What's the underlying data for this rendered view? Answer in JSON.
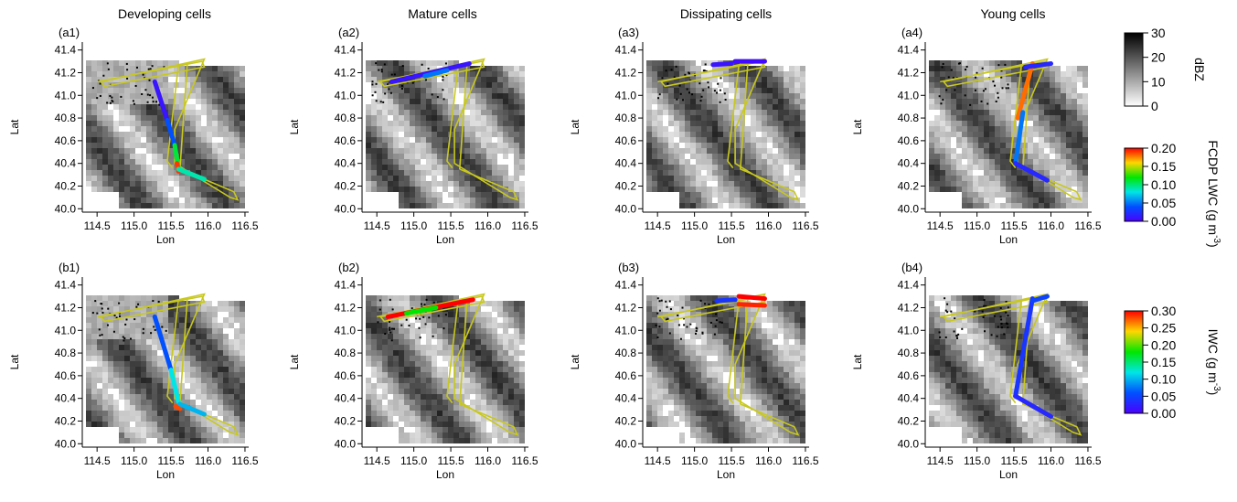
{
  "columns": [
    "Developing cells",
    "Mature cells",
    "Dissipating cells",
    "Young cells"
  ],
  "panel_labels": [
    "(a1)",
    "(a2)",
    "(a3)",
    "(a4)",
    "(b1)",
    "(b2)",
    "(b3)",
    "(b4)"
  ],
  "axis_labels": {
    "x": "Lon",
    "y": "Lat"
  },
  "colors": {
    "track": "#c8c81e",
    "radar_dark": "#141414",
    "radar_light": "#e6e6e6"
  },
  "colorbars": {
    "dbz": {
      "label": "dBZ",
      "ticks": [
        "30",
        "20",
        "10",
        "0"
      ],
      "range": [
        0,
        30
      ]
    },
    "lwc": {
      "label": "FCDP LWC (g m",
      "sup": "-3",
      "tail": ")",
      "ticks": [
        "0.20",
        "0.15",
        "0.10",
        "0.05",
        "0.00"
      ],
      "range": [
        0,
        0.2
      ]
    },
    "iwc": {
      "label": "IWC (g m",
      "sup": "-3",
      "tail": ")",
      "ticks": [
        "0.30",
        "0.25",
        "0.20",
        "0.15",
        "0.10",
        "0.05",
        "0.00"
      ],
      "range": [
        0,
        0.3
      ]
    }
  },
  "chart_data": {
    "type": "scatter",
    "description_axes": {
      "x_ticks": [
        "114.5",
        "115.0",
        "115.5",
        "116.0",
        "116.5"
      ],
      "y_ticks": [
        "40.0",
        "40.2",
        "40.4",
        "40.6",
        "40.8",
        "41.0",
        "41.2",
        "41.4"
      ],
      "xlim": [
        114.3,
        116.55
      ],
      "ylim": [
        39.97,
        41.47
      ]
    },
    "flight_track": [
      [
        114.5,
        41.12
      ],
      [
        115.92,
        41.3
      ],
      [
        115.95,
        41.25
      ],
      [
        114.6,
        41.08
      ],
      [
        114.55,
        41.12
      ],
      [
        115.95,
        41.32
      ],
      [
        115.55,
        40.7
      ],
      [
        115.55,
        40.4
      ],
      [
        116.3,
        40.1
      ],
      [
        116.4,
        40.08
      ],
      [
        116.35,
        40.15
      ],
      [
        115.62,
        40.35
      ],
      [
        115.72,
        41.28
      ],
      [
        115.6,
        41.27
      ],
      [
        115.45,
        40.42
      ],
      [
        115.52,
        40.36
      ]
    ],
    "panels": [
      {
        "id": "a1",
        "variable": "FCDP LWC",
        "segments": [
          {
            "from": [
              115.28,
              41.12
            ],
            "to": [
              115.45,
              40.78
            ],
            "value": 0.01
          },
          {
            "from": [
              115.45,
              40.78
            ],
            "to": [
              115.55,
              40.56
            ],
            "value": 0.04
          },
          {
            "from": [
              115.55,
              40.56
            ],
            "to": [
              115.6,
              40.36
            ],
            "value": 0.11
          },
          {
            "from": [
              115.58,
              40.4
            ],
            "to": [
              115.6,
              40.33
            ],
            "value": 0.19
          },
          {
            "from": [
              115.6,
              40.35
            ],
            "to": [
              115.95,
              40.26
            ],
            "value": 0.09
          }
        ]
      },
      {
        "id": "a2",
        "variable": "FCDP LWC",
        "segments": [
          {
            "from": [
              114.7,
              41.12
            ],
            "to": [
              115.75,
              41.28
            ],
            "value": 0.01
          },
          {
            "from": [
              115.15,
              41.17
            ],
            "to": [
              115.45,
              41.22
            ],
            "value": 0.05
          }
        ]
      },
      {
        "id": "a3",
        "variable": "FCDP LWC",
        "segments": [
          {
            "from": [
              115.55,
              41.3
            ],
            "to": [
              115.95,
              41.3
            ],
            "value": 0.005
          },
          {
            "from": [
              115.25,
              41.27
            ],
            "to": [
              115.5,
              41.28
            ],
            "value": 0.01
          }
        ]
      },
      {
        "id": "a4",
        "variable": "FCDP LWC",
        "segments": [
          {
            "from": [
              115.75,
              41.28
            ],
            "to": [
              115.55,
              40.8
            ],
            "value": 0.18
          },
          {
            "from": [
              115.62,
              40.85
            ],
            "to": [
              115.52,
              40.4
            ],
            "value": 0.05
          },
          {
            "from": [
              115.52,
              40.4
            ],
            "to": [
              115.95,
              40.25
            ],
            "value": 0.02
          },
          {
            "from": [
              115.65,
              41.25
            ],
            "to": [
              116.0,
              41.28
            ],
            "value": 0.02
          }
        ]
      },
      {
        "id": "b1",
        "variable": "IWC",
        "segments": [
          {
            "from": [
              115.28,
              41.12
            ],
            "to": [
              115.5,
              40.65
            ],
            "value": 0.06
          },
          {
            "from": [
              115.5,
              40.65
            ],
            "to": [
              115.6,
              40.37
            ],
            "value": 0.12
          },
          {
            "from": [
              115.56,
              40.33
            ],
            "to": [
              115.62,
              40.31
            ],
            "value": 0.28
          },
          {
            "from": [
              115.62,
              40.35
            ],
            "to": [
              115.95,
              40.26
            ],
            "value": 0.1
          }
        ]
      },
      {
        "id": "b2",
        "variable": "IWC",
        "segments": [
          {
            "from": [
              114.65,
              41.12
            ],
            "to": [
              115.8,
              41.27
            ],
            "value": 0.3
          },
          {
            "from": [
              114.9,
              41.15
            ],
            "to": [
              115.3,
              41.2
            ],
            "value": 0.18
          }
        ]
      },
      {
        "id": "b3",
        "variable": "IWC",
        "segments": [
          {
            "from": [
              115.6,
              41.3
            ],
            "to": [
              115.95,
              41.28
            ],
            "value": 0.3
          },
          {
            "from": [
              115.6,
              41.23
            ],
            "to": [
              115.95,
              41.22
            ],
            "value": 0.29
          },
          {
            "from": [
              115.3,
              41.26
            ],
            "to": [
              115.55,
              41.27
            ],
            "value": 0.04
          }
        ]
      },
      {
        "id": "b4",
        "variable": "IWC",
        "segments": [
          {
            "from": [
              115.75,
              41.28
            ],
            "to": [
              115.52,
              40.42
            ],
            "value": 0.04
          },
          {
            "from": [
              115.52,
              40.42
            ],
            "to": [
              116.0,
              40.24
            ],
            "value": 0.03
          },
          {
            "from": [
              115.75,
              41.26
            ],
            "to": [
              115.95,
              41.3
            ],
            "value": 0.05
          }
        ]
      }
    ]
  }
}
